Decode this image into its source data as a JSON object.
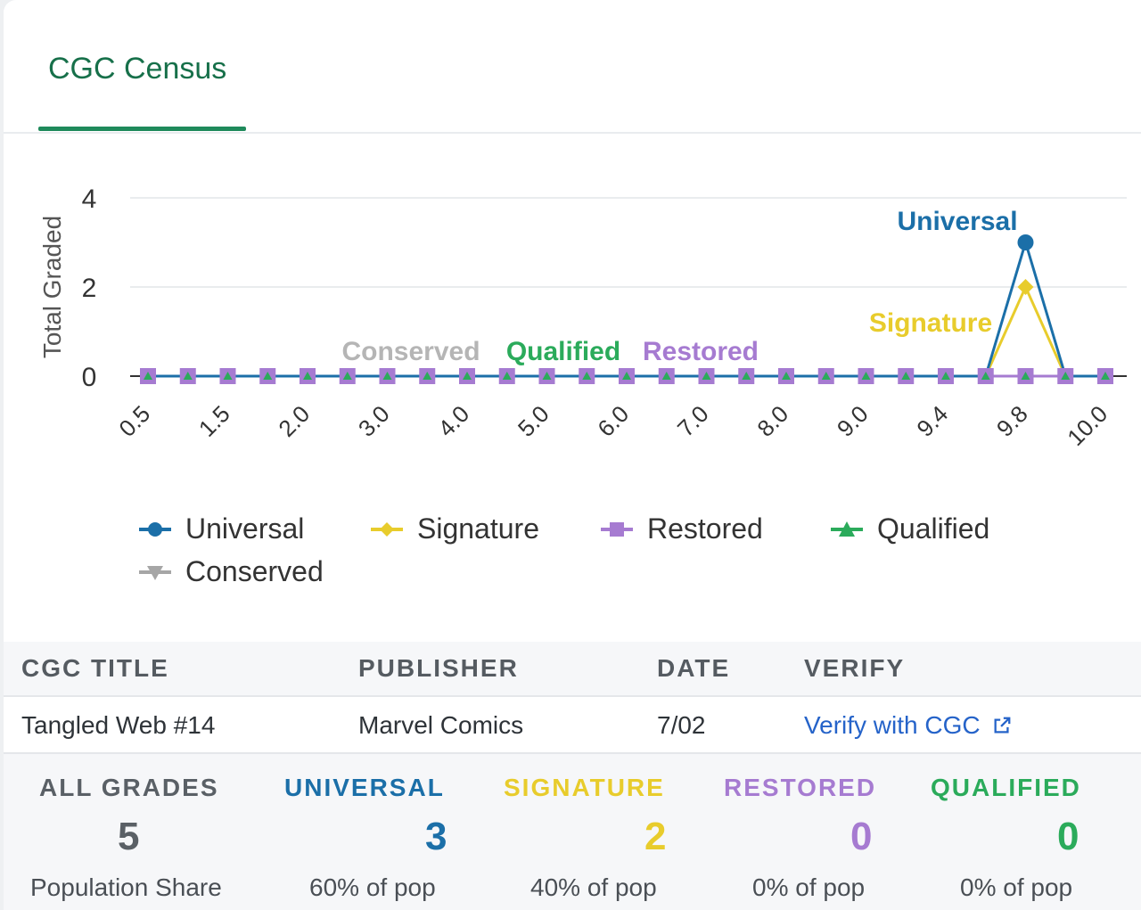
{
  "tabs": [
    {
      "label": "CGC Census",
      "active": true
    }
  ],
  "colors": {
    "universal": "#1b6fa8",
    "signature": "#e8cc2c",
    "restored": "#a67bd1",
    "qualified": "#2bab5b",
    "conserved": "#a6a6a6",
    "accent": "#1f8a5b"
  },
  "chart_data": {
    "type": "line",
    "ylabel": "Total Graded",
    "xlabel": "",
    "ylim": [
      0,
      4
    ],
    "yticks": [
      0,
      2,
      4
    ],
    "grid": true,
    "legend_position": "bottom",
    "x": [
      "0.5",
      "1.0",
      "1.5",
      "1.8",
      "2.0",
      "2.5",
      "3.0",
      "3.5",
      "4.0",
      "4.5",
      "5.0",
      "5.5",
      "6.0",
      "6.5",
      "7.0",
      "7.5",
      "8.0",
      "8.5",
      "9.0",
      "9.2",
      "9.4",
      "9.6",
      "9.8",
      "9.9",
      "10.0"
    ],
    "xtick_labels": [
      "0.5",
      "1.5",
      "2.0",
      "3.0",
      "4.0",
      "5.0",
      "6.0",
      "7.0",
      "8.0",
      "9.0",
      "9.4",
      "9.8",
      "10.0"
    ],
    "series": [
      {
        "name": "Universal",
        "values": [
          0,
          0,
          0,
          0,
          0,
          0,
          0,
          0,
          0,
          0,
          0,
          0,
          0,
          0,
          0,
          0,
          0,
          0,
          0,
          0,
          0,
          0,
          3,
          0,
          0
        ]
      },
      {
        "name": "Signature",
        "values": [
          0,
          0,
          0,
          0,
          0,
          0,
          0,
          0,
          0,
          0,
          0,
          0,
          0,
          0,
          0,
          0,
          0,
          0,
          0,
          0,
          0,
          0,
          2,
          0,
          0
        ]
      },
      {
        "name": "Restored",
        "values": [
          0,
          0,
          0,
          0,
          0,
          0,
          0,
          0,
          0,
          0,
          0,
          0,
          0,
          0,
          0,
          0,
          0,
          0,
          0,
          0,
          0,
          0,
          0,
          0,
          0
        ]
      },
      {
        "name": "Qualified",
        "values": [
          0,
          0,
          0,
          0,
          0,
          0,
          0,
          0,
          0,
          0,
          0,
          0,
          0,
          0,
          0,
          0,
          0,
          0,
          0,
          0,
          0,
          0,
          0,
          0,
          0
        ]
      },
      {
        "name": "Conserved",
        "values": [
          0,
          0,
          0,
          0,
          0,
          0,
          0,
          0,
          0,
          0,
          0,
          0,
          0,
          0,
          0,
          0,
          0,
          0,
          0,
          0,
          0,
          0,
          0,
          0,
          0
        ]
      }
    ],
    "annotations": [
      "Universal",
      "Signature",
      "Conserved",
      "Qualified",
      "Restored"
    ]
  },
  "legend": {
    "universal": "Universal",
    "signature": "Signature",
    "restored": "Restored",
    "qualified": "Qualified",
    "conserved": "Conserved"
  },
  "table": {
    "headers": [
      "CGC TITLE",
      "PUBLISHER",
      "DATE",
      "VERIFY"
    ],
    "row": {
      "title": "Tangled Web #14",
      "publisher": "Marvel Comics",
      "date": "7/02",
      "verify": "Verify with CGC"
    }
  },
  "stats": [
    {
      "label": "ALL GRADES",
      "value": "5",
      "sub": "Population Share",
      "color": "#5a6066"
    },
    {
      "label": "UNIVERSAL",
      "value": "3",
      "sub": "60% of pop",
      "color": "#1b6fa8"
    },
    {
      "label": "SIGNATURE",
      "value": "2",
      "sub": "40% of pop",
      "color": "#e8cc2c"
    },
    {
      "label": "RESTORED",
      "value": "0",
      "sub": "0% of pop",
      "color": "#a67bd1"
    },
    {
      "label": "QUALIFIED",
      "value": "0",
      "sub": "0% of pop",
      "color": "#2bab5b"
    }
  ]
}
